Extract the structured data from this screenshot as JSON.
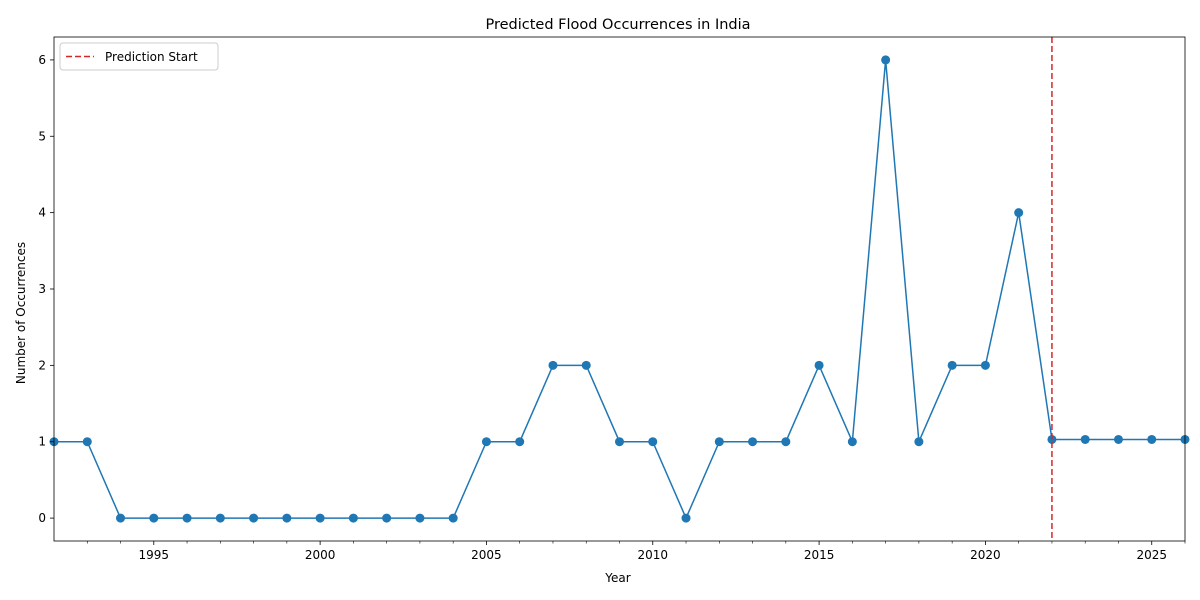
{
  "chart_data": {
    "type": "line",
    "title": "Predicted Flood Occurrences in India",
    "xlabel": "Year",
    "ylabel": "Number of Occurrences",
    "xlim": [
      1992,
      2026
    ],
    "ylim": [
      -0.3,
      6.3
    ],
    "x_ticks": [
      1995,
      2000,
      2005,
      2010,
      2015,
      2020,
      2025
    ],
    "x_minor_ticks": [
      1993,
      1994,
      1996,
      1997,
      1998,
      1999,
      2001,
      2002,
      2003,
      2004,
      2006,
      2007,
      2008,
      2009,
      2011,
      2012,
      2013,
      2014,
      2016,
      2017,
      2018,
      2019,
      2021,
      2022,
      2023,
      2024,
      2026
    ],
    "y_ticks": [
      0,
      1,
      2,
      3,
      4,
      5,
      6
    ],
    "grid": false,
    "series": [
      {
        "color": "#1f77b4",
        "marker": "circle",
        "x": [
          1992,
          1993,
          1994,
          1995,
          1996,
          1997,
          1998,
          1999,
          2000,
          2001,
          2002,
          2003,
          2004,
          2005,
          2006,
          2007,
          2008,
          2009,
          2010,
          2011,
          2012,
          2013,
          2014,
          2015,
          2016,
          2017,
          2018,
          2019,
          2020,
          2021,
          2022,
          2023,
          2024,
          2025,
          2026
        ],
        "values": [
          1,
          1,
          0,
          0,
          0,
          0,
          0,
          0,
          0,
          0,
          0,
          0,
          0,
          1,
          1,
          2,
          2,
          1,
          1,
          0,
          1,
          1,
          1,
          2,
          1,
          6,
          1,
          2,
          2,
          4,
          1.03,
          1.03,
          1.03,
          1.03,
          1.03
        ]
      }
    ],
    "vline": {
      "x": 2022,
      "label": "Prediction Start",
      "color": "#d62728",
      "style": "dashed"
    },
    "legend": {
      "placement": "top-left",
      "entries": [
        "Prediction Start"
      ]
    }
  }
}
